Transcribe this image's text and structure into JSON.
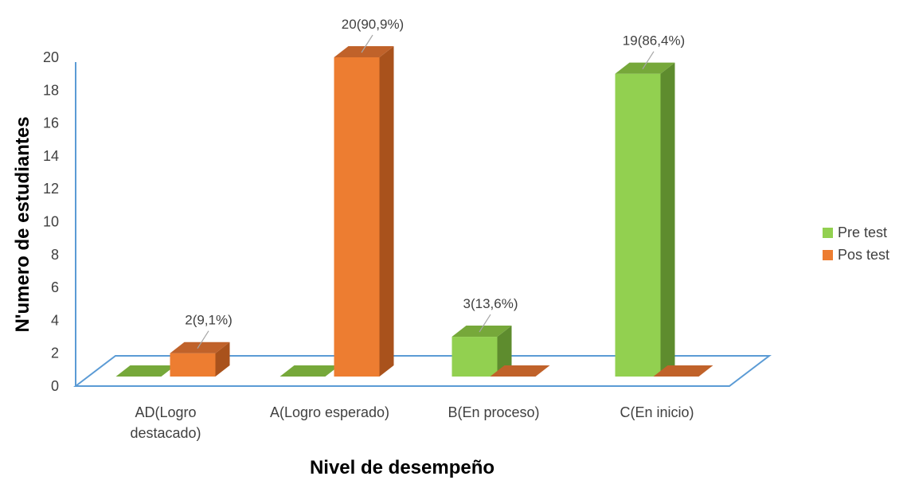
{
  "chart_data": {
    "type": "bar",
    "style": "3d-clustered-column",
    "categories": [
      "AD(Logro destacado)",
      "A(Logro esperado)",
      "B(En proceso)",
      "C(En inicio)"
    ],
    "category_lines": [
      [
        "AD(Logro",
        "destacado)"
      ],
      [
        "A(Logro esperado)"
      ],
      [
        "B(En proceso)"
      ],
      [
        "C(En inicio)"
      ]
    ],
    "series": [
      {
        "name": "Pre test",
        "values": [
          0,
          0,
          3,
          19
        ],
        "color": "#92D050",
        "side_color": "#5E8C2E",
        "top_color": "#76A83A"
      },
      {
        "name": "Pos test",
        "values": [
          2,
          20,
          0,
          0
        ],
        "color": "#ED7D31",
        "side_color": "#A9521C",
        "top_color": "#C0622A"
      }
    ],
    "data_labels": [
      {
        "category": 0,
        "series": 1,
        "text": "2(9,1%)"
      },
      {
        "category": 1,
        "series": 1,
        "text": "20(90,9%)"
      },
      {
        "category": 2,
        "series": 0,
        "text": "3(13,6%)"
      },
      {
        "category": 3,
        "series": 0,
        "text": "19(86,4%)"
      }
    ],
    "xlabel": "Nivel de desempeño",
    "ylabel": "N'umero de estudiantes",
    "ylim": [
      0,
      20
    ],
    "yticks": [
      0,
      2,
      4,
      6,
      8,
      10,
      12,
      14,
      16,
      18,
      20
    ],
    "grid": false,
    "legend_position": "right",
    "axis_color": "#5B9BD5"
  }
}
